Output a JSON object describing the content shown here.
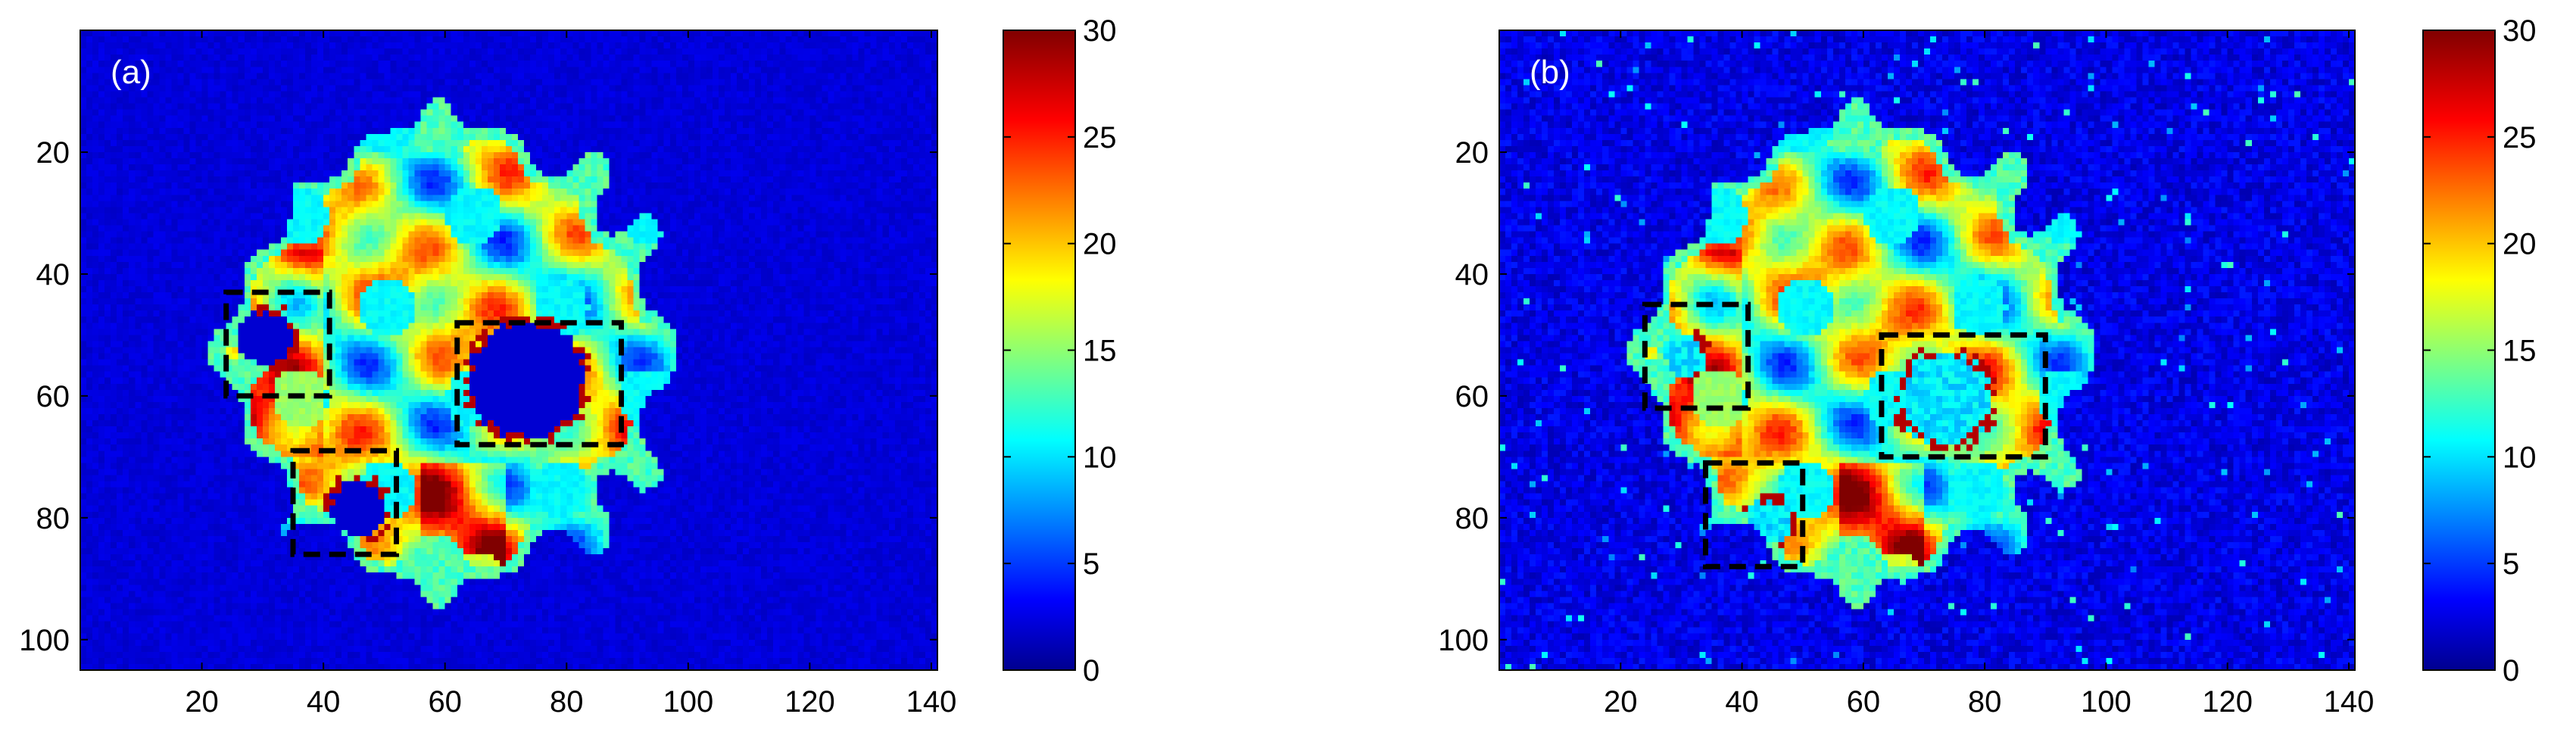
{
  "colors": {
    "colormap": "jet",
    "colormap_stops": [
      "#00008f",
      "#0000ff",
      "#00ffff",
      "#ffff00",
      "#ff0000",
      "#800000"
    ],
    "background_low": "#0a1fa8",
    "roi_box": "#000000"
  },
  "chart_data": [
    {
      "type": "heatmap",
      "panel_label": "(a)",
      "xlim": [
        0,
        141
      ],
      "ylim": [
        105,
        0
      ],
      "y_axis_reversed": true,
      "x_ticks": [
        "20",
        "40",
        "60",
        "80",
        "100",
        "120",
        "140"
      ],
      "x_tick_values": [
        20,
        40,
        60,
        80,
        100,
        120,
        140
      ],
      "y_ticks": [
        "20",
        "40",
        "60",
        "80",
        "100"
      ],
      "y_tick_values": [
        20,
        40,
        60,
        80,
        100
      ],
      "colorbar": {
        "clim": [
          0,
          30
        ],
        "ticks": [
          "0",
          "5",
          "10",
          "15",
          "20",
          "25",
          "30"
        ],
        "tick_values": [
          0,
          5,
          10,
          15,
          20,
          25,
          30
        ]
      },
      "annotations": [
        {
          "type": "dashed-box",
          "x": [
            24,
            41
          ],
          "y": [
            43,
            60
          ]
        },
        {
          "type": "dashed-box",
          "x": [
            35,
            52
          ],
          "y": [
            69,
            86
          ]
        },
        {
          "type": "dashed-box",
          "x": [
            62,
            89
          ],
          "y": [
            48,
            68
          ]
        }
      ],
      "object_extent": {
        "x": [
          24,
          96
        ],
        "y": [
          15,
          90
        ]
      },
      "object_holes": [
        {
          "x": 30,
          "y": 50,
          "r": 5
        },
        {
          "x": 45,
          "y": 78,
          "r": 5
        },
        {
          "x": 73,
          "y": 57,
          "r": 10
        }
      ]
    },
    {
      "type": "heatmap",
      "panel_label": "(b)",
      "xlim": [
        0,
        141
      ],
      "ylim": [
        105,
        0
      ],
      "y_axis_reversed": true,
      "x_ticks": [
        "20",
        "40",
        "60",
        "80",
        "100",
        "120",
        "140"
      ],
      "x_tick_values": [
        20,
        40,
        60,
        80,
        100,
        120,
        140
      ],
      "y_ticks": [
        "20",
        "40",
        "60",
        "80",
        "100"
      ],
      "y_tick_values": [
        20,
        40,
        60,
        80,
        100
      ],
      "colorbar": {
        "clim": [
          0,
          30
        ],
        "ticks": [
          "0",
          "5",
          "10",
          "15",
          "20",
          "25",
          "30"
        ],
        "tick_values": [
          0,
          5,
          10,
          15,
          20,
          25,
          30
        ]
      },
      "annotations": [
        {
          "type": "dashed-box",
          "x": [
            24,
            41
          ],
          "y": [
            45,
            62
          ]
        },
        {
          "type": "dashed-box",
          "x": [
            34,
            50
          ],
          "y": [
            71,
            88
          ]
        },
        {
          "type": "dashed-box",
          "x": [
            63,
            90
          ],
          "y": [
            50,
            70
          ]
        }
      ],
      "object_extent": {
        "x": [
          24,
          96
        ],
        "y": [
          15,
          90
        ]
      },
      "object_holes": [
        {
          "x": 30,
          "y": 53,
          "r": 4
        },
        {
          "x": 44,
          "y": 80,
          "r": 4
        },
        {
          "x": 73,
          "y": 60,
          "r": 8
        }
      ]
    }
  ]
}
